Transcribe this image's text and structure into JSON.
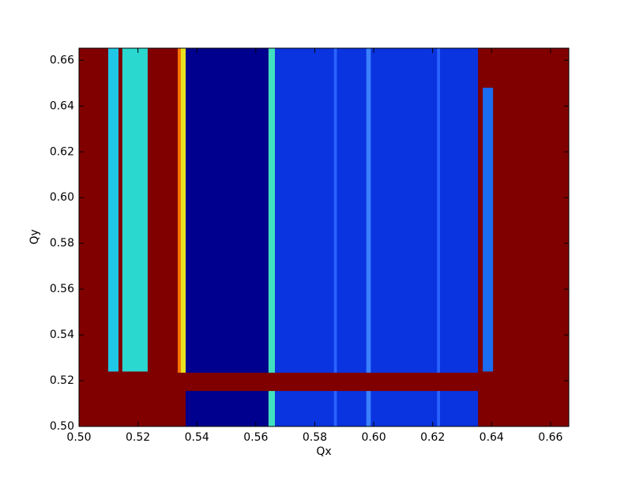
{
  "chart_data": {
    "type": "heatmap",
    "x_label": "Qx",
    "y_label": "Qy",
    "xlim": [
      0.5,
      0.6662
    ],
    "ylim": [
      0.5,
      0.6653
    ],
    "xticks": [
      {
        "value": 0.5,
        "label": "0.50"
      },
      {
        "value": 0.52,
        "label": "0.52"
      },
      {
        "value": 0.54,
        "label": "0.54"
      },
      {
        "value": 0.56,
        "label": "0.56"
      },
      {
        "value": 0.58,
        "label": "0.58"
      },
      {
        "value": 0.6,
        "label": "0.60"
      },
      {
        "value": 0.62,
        "label": "0.62"
      },
      {
        "value": 0.64,
        "label": "0.64"
      },
      {
        "value": 0.66,
        "label": "0.66"
      }
    ],
    "yticks": [
      {
        "value": 0.5,
        "label": "0.50"
      },
      {
        "value": 0.52,
        "label": "0.52"
      },
      {
        "value": 0.54,
        "label": "0.54"
      },
      {
        "value": 0.56,
        "label": "0.56"
      },
      {
        "value": 0.58,
        "label": "0.58"
      },
      {
        "value": 0.6,
        "label": "0.60"
      },
      {
        "value": 0.62,
        "label": "0.62"
      },
      {
        "value": 0.64,
        "label": "0.64"
      },
      {
        "value": 0.66,
        "label": "0.66"
      }
    ],
    "background_color": "#800000",
    "regions": [
      {
        "x": [
          0.5099,
          0.5134
        ],
        "y": [
          0.524,
          0.6653
        ],
        "color": "#1ec8e6"
      },
      {
        "x": [
          0.5147,
          0.5233
        ],
        "y": [
          0.524,
          0.6653
        ],
        "color": "#2ad8d0"
      },
      {
        "x": [
          0.5335,
          0.5345
        ],
        "y": [
          0.522,
          0.6653
        ],
        "color": "#ff7000"
      },
      {
        "x": [
          0.5345,
          0.5362
        ],
        "y": [
          0.522,
          0.6653
        ],
        "color": "#e8e020"
      },
      {
        "x": [
          0.5362,
          0.5643
        ],
        "y": [
          0.5,
          0.6653
        ],
        "color": "#00008e"
      },
      {
        "x": [
          0.5643,
          0.5665
        ],
        "y": [
          0.5,
          0.6653
        ],
        "color": "#40e0c0"
      },
      {
        "x": [
          0.5665,
          0.6354
        ],
        "y": [
          0.5,
          0.6653
        ],
        "color": "#0a34e0"
      },
      {
        "x": [
          0.5865,
          0.5875
        ],
        "y": [
          0.5,
          0.6653
        ],
        "color": "#2a62ff"
      },
      {
        "x": [
          0.5975,
          0.599
        ],
        "y": [
          0.5,
          0.6653
        ],
        "color": "#3a80ff"
      },
      {
        "x": [
          0.6215,
          0.6225
        ],
        "y": [
          0.5,
          0.6653
        ],
        "color": "#2a62ff"
      },
      {
        "x": [
          0.637,
          0.6405
        ],
        "y": [
          0.524,
          0.648
        ],
        "color": "#1a6cf0"
      },
      {
        "x": [
          0.5,
          0.6405
        ],
        "y": [
          0.5155,
          0.5235
        ],
        "color": "#800000"
      }
    ]
  }
}
